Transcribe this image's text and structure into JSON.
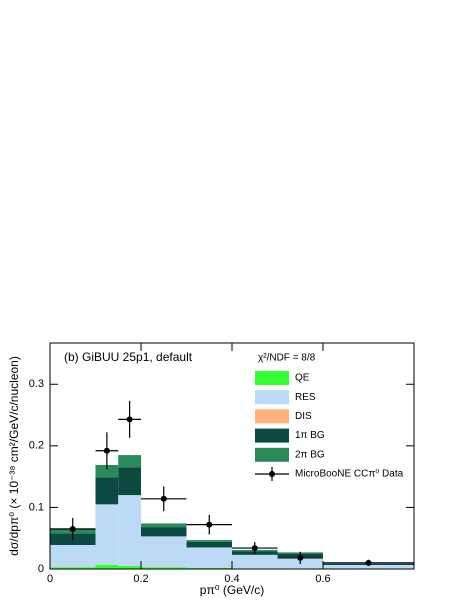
{
  "chart_data": {
    "type": "histogram",
    "title": "(b) GiBUU 25p1, default",
    "annotation": "χ²/NDF = 8/8",
    "xlabel": "pπ⁰ (GeV/c)",
    "ylabel": "dσ/dpπ⁰ (× 10⁻³⁸ cm²/GeV/c/nucleon)",
    "bins": [
      0,
      0.1,
      0.15,
      0.2,
      0.3,
      0.4,
      0.5,
      0.6,
      0.8
    ],
    "series": [
      {
        "name": "QE",
        "color": "#33ff33",
        "values": [
          0.003,
          0.007,
          0.005,
          0.003,
          0.002,
          0.001,
          0.001,
          0.0005
        ]
      },
      {
        "name": "RES",
        "color": "#bcdaf5",
        "values": [
          0.036,
          0.098,
          0.115,
          0.05,
          0.033,
          0.022,
          0.018,
          0.006
        ]
      },
      {
        "name": "DIS",
        "color": "#ffb27f",
        "values": [
          0,
          0,
          0,
          0,
          0,
          0,
          0,
          0
        ]
      },
      {
        "name": "1π BG",
        "color": "#0a4a40",
        "values": [
          0.019,
          0.044,
          0.045,
          0.015,
          0.009,
          0.006,
          0.006,
          0.002
        ]
      },
      {
        "name": "2π BG",
        "color": "#2a8a5a",
        "values": [
          0.008,
          0.02,
          0.02,
          0.006,
          0.003,
          0.002,
          0.002,
          0.001
        ]
      }
    ],
    "points": {
      "name": "MicroBooNE CCπ⁰ Data",
      "color": "#000000",
      "values": [
        0.065,
        0.192,
        0.243,
        0.114,
        0.072,
        0.034,
        0.018,
        0.01
      ],
      "errors": [
        0.018,
        0.03,
        0.03,
        0.02,
        0.016,
        0.01,
        0.01,
        0.005
      ]
    },
    "xlim": [
      0,
      0.8
    ],
    "ylim": [
      0,
      0.367
    ],
    "xticks": [
      0,
      0.2,
      0.4,
      0.6
    ],
    "yticks": [
      0,
      0.1,
      0.2,
      0.3
    ]
  }
}
